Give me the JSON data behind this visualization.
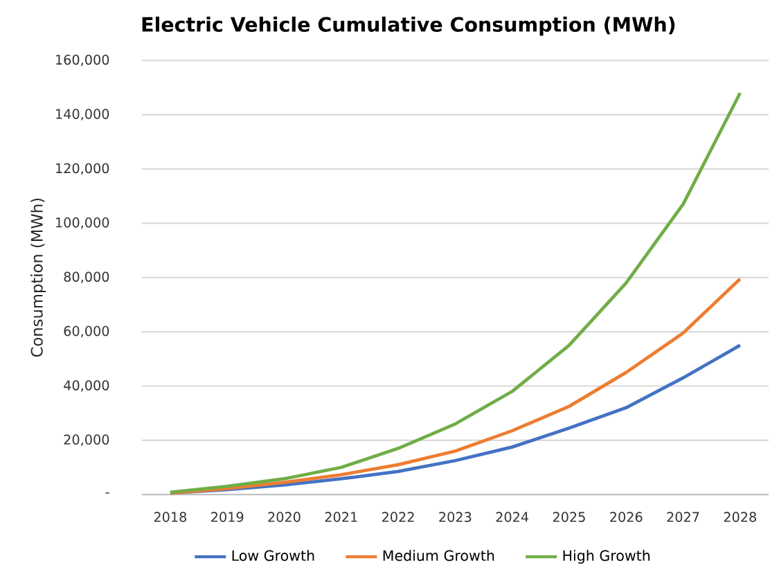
{
  "chart_data": {
    "type": "line",
    "title": "Electric Vehicle Cumulative Consumption (MWh)",
    "ylabel": "Consumption (MWh)",
    "categories": [
      "2018",
      "2019",
      "2020",
      "2021",
      "2022",
      "2023",
      "2024",
      "2025",
      "2026",
      "2027",
      "2028"
    ],
    "series": [
      {
        "name": "Low Growth",
        "color": "#4472c4",
        "values": [
          500,
          1800,
          3500,
          5800,
          8500,
          12500,
          17500,
          24500,
          32000,
          43000,
          55000
        ]
      },
      {
        "name": "Medium Growth",
        "color": "#ed7d31",
        "values": [
          500,
          2200,
          4500,
          7300,
          11000,
          16000,
          23500,
          32500,
          45000,
          59500,
          79500
        ]
      },
      {
        "name": "High Growth",
        "color": "#70ad47",
        "values": [
          800,
          3000,
          5800,
          10000,
          17000,
          26000,
          38000,
          55000,
          78000,
          107000,
          148000
        ]
      }
    ],
    "ylim": [
      0,
      160000
    ],
    "yticks": [
      {
        "value": 0,
        "label": "-"
      },
      {
        "value": 20000,
        "label": "20,000"
      },
      {
        "value": 40000,
        "label": "40,000"
      },
      {
        "value": 60000,
        "label": "60,000"
      },
      {
        "value": 80000,
        "label": "80,000"
      },
      {
        "value": 100000,
        "label": "100,000"
      },
      {
        "value": 120000,
        "label": "120,000"
      },
      {
        "value": 140000,
        "label": "140,000"
      },
      {
        "value": 160000,
        "label": "160,000"
      }
    ],
    "grid": "y",
    "legend": "bottom"
  }
}
